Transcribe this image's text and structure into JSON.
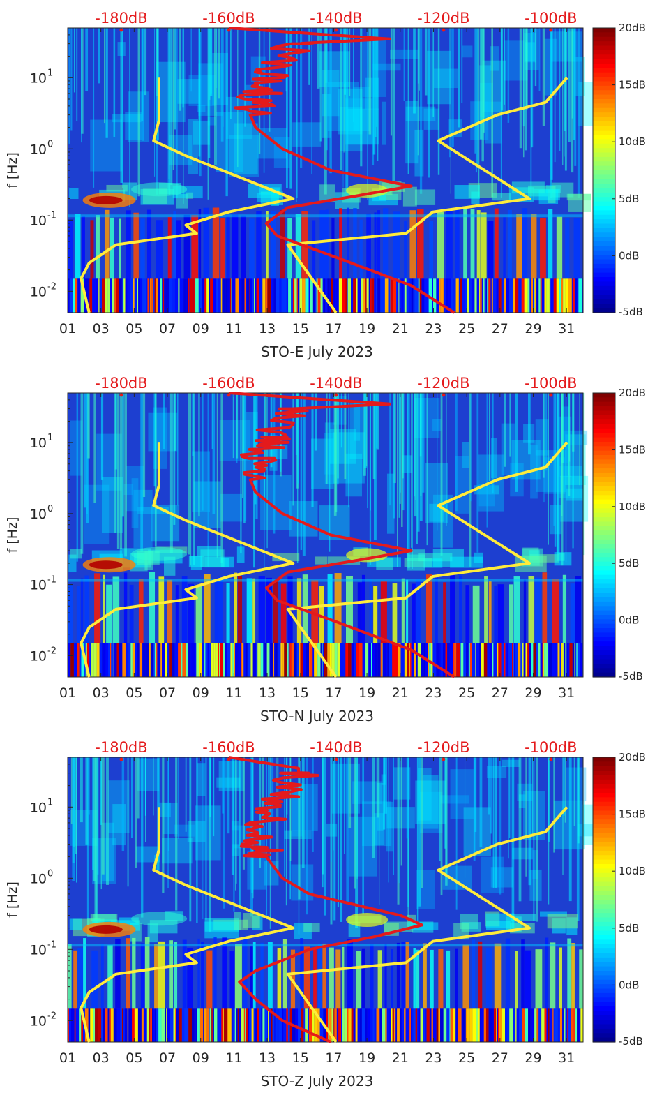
{
  "chart_data": [
    {
      "type": "heatmap",
      "subtype": "spectrogram",
      "xlabel": "STO-E July 2023",
      "ylabel": "f [Hz]",
      "x_tick_labels": [
        "01",
        "03",
        "05",
        "07",
        "09",
        "11",
        "13",
        "15",
        "17",
        "19",
        "21",
        "23",
        "25",
        "27",
        "29",
        "31"
      ],
      "xlim": [
        1,
        32
      ],
      "y_scale": "log",
      "ylim": [
        0.005,
        50
      ],
      "y_tick_labels": [
        {
          "base": "10",
          "exp": "1",
          "value": 10
        },
        {
          "base": "10",
          "exp": "0",
          "value": 1
        },
        {
          "base": "10",
          "exp": "-1",
          "value": 0.1
        },
        {
          "base": "10",
          "exp": "-2",
          "value": 0.01
        }
      ],
      "top_axis_labels": [
        "-180dB",
        "-160dB",
        "-140dB",
        "-120dB",
        "-100dB"
      ],
      "top_axis_range_db": [
        -190,
        -94
      ],
      "colorbar": {
        "labels": [
          "20dB",
          "15dB",
          "10dB",
          "5dB",
          "0dB",
          "-5dB"
        ],
        "range_db": [
          -5,
          20
        ]
      },
      "noise_model_curves": {
        "low": [
          [
            -186,
            0.005
          ],
          [
            -187.5,
            0.015
          ],
          [
            -186,
            0.025
          ],
          [
            -181,
            0.045
          ],
          [
            -166,
            0.065
          ],
          [
            -168,
            0.085
          ],
          [
            -160,
            0.13
          ],
          [
            -148,
            0.2
          ],
          [
            -168,
            0.8
          ],
          [
            -174,
            1.3
          ],
          [
            -173,
            2.5
          ],
          [
            -173,
            10
          ]
        ],
        "high": [
          [
            -140,
            0.005
          ],
          [
            -149,
            0.045
          ],
          [
            -127,
            0.065
          ],
          [
            -122,
            0.13
          ],
          [
            -104,
            0.2
          ],
          [
            -121,
            1.3
          ],
          [
            -110,
            3
          ],
          [
            -101,
            4.5
          ],
          [
            -97,
            10
          ]
        ]
      },
      "psd_curve": [
        [
          -118,
          0.005
        ],
        [
          -126,
          0.012
        ],
        [
          -140,
          0.03
        ],
        [
          -151,
          0.06
        ],
        [
          -153,
          0.09
        ],
        [
          -149,
          0.15
        ],
        [
          -136,
          0.22
        ],
        [
          -126,
          0.3
        ],
        [
          -141,
          0.5
        ],
        [
          -150,
          1
        ],
        [
          -155,
          2
        ],
        [
          -156,
          3
        ],
        [
          -154,
          6
        ],
        [
          -152,
          12
        ],
        [
          -148,
          30
        ],
        [
          -130,
          35
        ],
        [
          -160,
          50
        ]
      ],
      "psd_noisy_from_hz": 3
    },
    {
      "type": "heatmap",
      "subtype": "spectrogram",
      "xlabel": "STO-N July 2023",
      "ylabel": "f [Hz]",
      "x_tick_labels": [
        "01",
        "03",
        "05",
        "07",
        "09",
        "11",
        "13",
        "15",
        "17",
        "19",
        "21",
        "23",
        "25",
        "27",
        "29",
        "31"
      ],
      "xlim": [
        1,
        32
      ],
      "y_scale": "log",
      "ylim": [
        0.005,
        50
      ],
      "y_tick_labels": [
        {
          "base": "10",
          "exp": "1",
          "value": 10
        },
        {
          "base": "10",
          "exp": "0",
          "value": 1
        },
        {
          "base": "10",
          "exp": "-1",
          "value": 0.1
        },
        {
          "base": "10",
          "exp": "-2",
          "value": 0.01
        }
      ],
      "top_axis_labels": [
        "-180dB",
        "-160dB",
        "-140dB",
        "-120dB",
        "-100dB"
      ],
      "top_axis_range_db": [
        -190,
        -94
      ],
      "colorbar": {
        "labels": [
          "20dB",
          "15dB",
          "10dB",
          "5dB",
          "0dB",
          "-5dB"
        ],
        "range_db": [
          -5,
          20
        ]
      },
      "noise_model_curves": {
        "low": [
          [
            -186,
            0.005
          ],
          [
            -187.5,
            0.015
          ],
          [
            -186,
            0.025
          ],
          [
            -181,
            0.045
          ],
          [
            -166,
            0.065
          ],
          [
            -168,
            0.085
          ],
          [
            -160,
            0.13
          ],
          [
            -148,
            0.2
          ],
          [
            -168,
            0.8
          ],
          [
            -174,
            1.3
          ],
          [
            -173,
            2.5
          ],
          [
            -173,
            10
          ]
        ],
        "high": [
          [
            -140,
            0.005
          ],
          [
            -149,
            0.045
          ],
          [
            -127,
            0.065
          ],
          [
            -122,
            0.13
          ],
          [
            -104,
            0.2
          ],
          [
            -121,
            1.3
          ],
          [
            -110,
            3
          ],
          [
            -101,
            4.5
          ],
          [
            -97,
            10
          ]
        ]
      },
      "psd_curve": [
        [
          -118,
          0.005
        ],
        [
          -126,
          0.012
        ],
        [
          -140,
          0.03
        ],
        [
          -151,
          0.06
        ],
        [
          -153,
          0.09
        ],
        [
          -149,
          0.15
        ],
        [
          -136,
          0.22
        ],
        [
          -126,
          0.3
        ],
        [
          -141,
          0.5
        ],
        [
          -150,
          1
        ],
        [
          -155,
          2
        ],
        [
          -156,
          3
        ],
        [
          -154,
          6
        ],
        [
          -152,
          12
        ],
        [
          -148,
          30
        ],
        [
          -130,
          35
        ],
        [
          -160,
          50
        ]
      ],
      "psd_noisy_from_hz": 3
    },
    {
      "type": "heatmap",
      "subtype": "spectrogram",
      "xlabel": "STO-Z July 2023",
      "ylabel": "f [Hz]",
      "x_tick_labels": [
        "01",
        "03",
        "05",
        "07",
        "09",
        "11",
        "13",
        "15",
        "17",
        "19",
        "21",
        "23",
        "25",
        "27",
        "29",
        "31"
      ],
      "xlim": [
        1,
        32
      ],
      "y_scale": "log",
      "ylim": [
        0.005,
        50
      ],
      "y_tick_labels": [
        {
          "base": "10",
          "exp": "1",
          "value": 10
        },
        {
          "base": "10",
          "exp": "0",
          "value": 1
        },
        {
          "base": "10",
          "exp": "-1",
          "value": 0.1
        },
        {
          "base": "10",
          "exp": "-2",
          "value": 0.01
        }
      ],
      "top_axis_labels": [
        "-180dB",
        "-160dB",
        "-140dB",
        "-120dB",
        "-100dB"
      ],
      "top_axis_range_db": [
        -190,
        -94
      ],
      "colorbar": {
        "labels": [
          "20dB",
          "15dB",
          "10dB",
          "5dB",
          "0dB",
          "-5dB"
        ],
        "range_db": [
          -5,
          20
        ]
      },
      "noise_model_curves": {
        "low": [
          [
            -186,
            0.005
          ],
          [
            -187.5,
            0.015
          ],
          [
            -186,
            0.025
          ],
          [
            -181,
            0.045
          ],
          [
            -166,
            0.065
          ],
          [
            -168,
            0.085
          ],
          [
            -160,
            0.13
          ],
          [
            -148,
            0.2
          ],
          [
            -168,
            0.8
          ],
          [
            -174,
            1.3
          ],
          [
            -173,
            2.5
          ],
          [
            -173,
            10
          ]
        ],
        "high": [
          [
            -140,
            0.005
          ],
          [
            -149,
            0.045
          ],
          [
            -127,
            0.065
          ],
          [
            -122,
            0.13
          ],
          [
            -104,
            0.2
          ],
          [
            -121,
            1.3
          ],
          [
            -110,
            3
          ],
          [
            -101,
            4.5
          ],
          [
            -97,
            10
          ]
        ]
      },
      "psd_curve": [
        [
          -141,
          0.005
        ],
        [
          -150,
          0.01
        ],
        [
          -155,
          0.02
        ],
        [
          -158,
          0.035
        ],
        [
          -155,
          0.05
        ],
        [
          -150,
          0.07
        ],
        [
          -145,
          0.1
        ],
        [
          -133,
          0.15
        ],
        [
          -124,
          0.22
        ],
        [
          -128,
          0.3
        ],
        [
          -145,
          0.6
        ],
        [
          -150,
          1
        ],
        [
          -153,
          2
        ],
        [
          -154,
          3
        ],
        [
          -153,
          6
        ],
        [
          -151,
          12
        ],
        [
          -147,
          30
        ],
        [
          -147,
          35
        ],
        [
          -160,
          50
        ]
      ],
      "psd_noisy_from_hz": 2
    }
  ]
}
